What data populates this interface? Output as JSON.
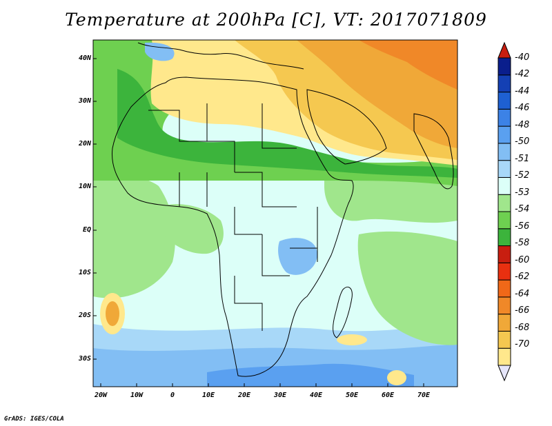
{
  "title": "Temperature at 200hPa [C], VT: 2017071809",
  "credit": "GrADS: IGES/COLA",
  "map": {
    "lat_labels": [
      "40N",
      "30N",
      "20N",
      "10N",
      "EQ",
      "10S",
      "20S",
      "30S"
    ],
    "lon_labels": [
      "20W",
      "10W",
      "0",
      "10E",
      "20E",
      "30E",
      "40E",
      "50E",
      "60E",
      "70E"
    ]
  },
  "colorbar": {
    "labels": [
      "-40",
      "-42",
      "-44",
      "-46",
      "-48",
      "-50",
      "-51",
      "-52",
      "-53",
      "-54",
      "-56",
      "-58",
      "-60",
      "-62",
      "-64",
      "-66",
      "-68",
      "-70"
    ],
    "colors": [
      "#ffe88c",
      "#f5c850",
      "#f0a838",
      "#f08828",
      "#f06818",
      "#e83010",
      "#c81e10",
      "#3cb43c",
      "#6ed050",
      "#a0e68c",
      "#dcfff8",
      "#a8d8f8",
      "#82bef4",
      "#5aa0f0",
      "#3c82e6",
      "#1e60d2",
      "#1440b4",
      "#0a1e8c"
    ],
    "top_cap_color": "#c81e10",
    "bottom_cap_color": "#e6e6fa"
  },
  "field_colors": {
    "sea_base": "#dcfff8",
    "light_green": "#a0e68c",
    "mid_green": "#6ed050",
    "dark_green": "#3cb43c",
    "yellow": "#ffe88c",
    "light_orange": "#f5c850",
    "orange": "#f0a838",
    "dark_orange": "#f08828",
    "light_blue": "#a8d8f8",
    "blue": "#82bef4",
    "dark_blue": "#5aa0f0"
  }
}
